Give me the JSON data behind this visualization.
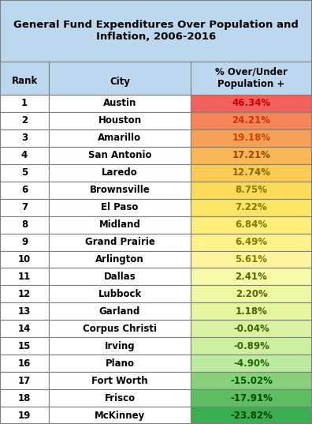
{
  "title": "General Fund Expenditures Over Population and\nInflation, 2006-2016",
  "col_headers": [
    "Rank",
    "City",
    "% Over/Under\nPopulation +"
  ],
  "rows": [
    [
      1,
      "Austin",
      "46.34%",
      46.34
    ],
    [
      2,
      "Houston",
      "24.21%",
      24.21
    ],
    [
      3,
      "Amarillo",
      "19.18%",
      19.18
    ],
    [
      4,
      "San Antonio",
      "17.21%",
      17.21
    ],
    [
      5,
      "Laredo",
      "12.74%",
      12.74
    ],
    [
      6,
      "Brownsville",
      "8.75%",
      8.75
    ],
    [
      7,
      "El Paso",
      "7.22%",
      7.22
    ],
    [
      8,
      "Midland",
      "6.84%",
      6.84
    ],
    [
      9,
      "Grand Prairie",
      "6.49%",
      6.49
    ],
    [
      10,
      "Arlington",
      "5.61%",
      5.61
    ],
    [
      11,
      "Dallas",
      "2.41%",
      2.41
    ],
    [
      12,
      "Lubbock",
      "2.20%",
      2.2
    ],
    [
      13,
      "Garland",
      "1.18%",
      1.18
    ],
    [
      14,
      "Corpus Christi",
      "-0.04%",
      -0.04
    ],
    [
      15,
      "Irving",
      "-0.89%",
      -0.89
    ],
    [
      16,
      "Plano",
      "-4.90%",
      -4.9
    ],
    [
      17,
      "Fort Worth",
      "-15.02%",
      -15.02
    ],
    [
      18,
      "Frisco",
      "-17.91%",
      -17.91
    ],
    [
      19,
      "McKinney",
      "-23.82%",
      -23.82
    ]
  ],
  "title_bg": "#BDD7EE",
  "header_bg": "#BDD7EE",
  "border_color": "#7F7F7F",
  "rank_city_text_color": "#000000",
  "header_text_color": "#000000",
  "cell_colors": [
    "#F1615E",
    "#F4865A",
    "#F6A058",
    "#F8B655",
    "#FACA56",
    "#FBDA5A",
    "#FCE566",
    "#FDED7A",
    "#FEF18C",
    "#FEF49E",
    "#F5F9A8",
    "#EEF7A4",
    "#E5F5A0",
    "#D9F1A0",
    "#CEEEA0",
    "#BCEAA0",
    "#88D07A",
    "#5DBD62",
    "#3DAD52"
  ],
  "value_text_colors": [
    "#CC0000",
    "#CC3300",
    "#CC4400",
    "#994400",
    "#886600",
    "#887700",
    "#887700",
    "#887700",
    "#887700",
    "#887700",
    "#556600",
    "#556600",
    "#446600",
    "#336600",
    "#336600",
    "#226600",
    "#005500",
    "#004400",
    "#004400"
  ]
}
